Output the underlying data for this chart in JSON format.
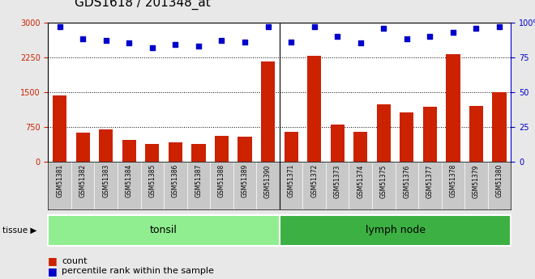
{
  "title": "GDS1618 / 201348_at",
  "samples": [
    "GSM51381",
    "GSM51382",
    "GSM51383",
    "GSM51384",
    "GSM51385",
    "GSM51386",
    "GSM51387",
    "GSM51388",
    "GSM51389",
    "GSM51390",
    "GSM51371",
    "GSM51372",
    "GSM51373",
    "GSM51374",
    "GSM51375",
    "GSM51376",
    "GSM51377",
    "GSM51378",
    "GSM51379",
    "GSM51380"
  ],
  "counts": [
    1420,
    620,
    700,
    480,
    380,
    420,
    390,
    560,
    540,
    2160,
    650,
    2280,
    800,
    650,
    1230,
    1070,
    1180,
    2310,
    1200,
    1500
  ],
  "percentile_ranks": [
    97,
    88,
    87,
    85,
    82,
    84,
    83,
    87,
    86,
    97,
    86,
    97,
    90,
    85,
    96,
    88,
    90,
    93,
    96,
    97
  ],
  "tissue_groups": [
    {
      "label": "tonsil",
      "start": 0,
      "end": 10,
      "color": "#90ee90"
    },
    {
      "label": "lymph node",
      "start": 10,
      "end": 20,
      "color": "#3cb043"
    }
  ],
  "bar_color": "#cc2200",
  "scatter_color": "#0000cc",
  "ylim_left": [
    0,
    3000
  ],
  "yticks_left": [
    0,
    750,
    1500,
    2250,
    3000
  ],
  "ylim_right": [
    0,
    100
  ],
  "yticks_right": [
    0,
    25,
    50,
    75,
    100
  ],
  "background_color": "#e8e8e8",
  "plot_bg": "#ffffff",
  "xticklabel_bg": "#c8c8c8",
  "legend_count_label": "count",
  "legend_pct_label": "percentile rank within the sample",
  "tissue_label": "tissue",
  "title_fontsize": 11,
  "tick_fontsize": 7,
  "legend_fontsize": 8
}
